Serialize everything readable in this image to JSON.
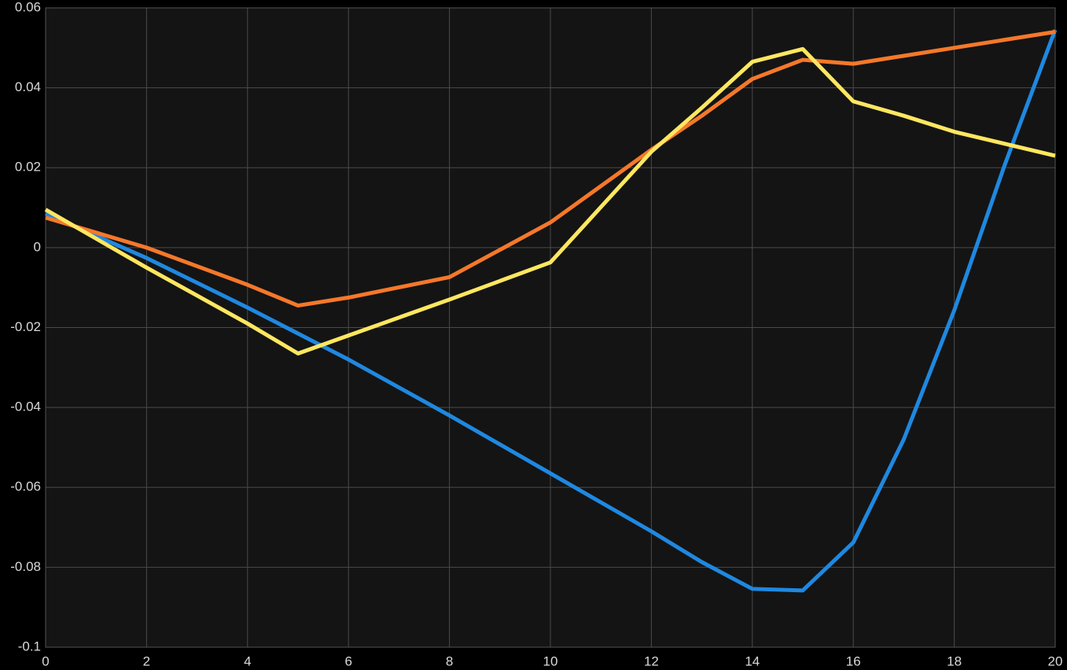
{
  "chart_data": {
    "type": "line",
    "x": [
      0,
      2,
      4,
      5,
      6,
      8,
      10,
      12,
      13,
      14,
      15,
      16,
      17,
      18,
      19,
      20
    ],
    "series": [
      {
        "color": "#1f88e0",
        "values": [
          0.0085,
          -0.0026,
          -0.015,
          -0.0215,
          -0.028,
          -0.042,
          -0.0565,
          -0.071,
          -0.0787,
          -0.0854,
          -0.0858,
          -0.0738,
          -0.048,
          -0.0157,
          0.0207,
          0.0545
        ]
      },
      {
        "color": "#f5782a",
        "values": [
          0.0075,
          0,
          -0.0093,
          -0.0145,
          -0.0125,
          -0.0074,
          0.0063,
          0.0245,
          0.033,
          0.0422,
          0.047,
          0.046,
          0.048,
          0.05,
          0.052,
          0.054
        ]
      },
      {
        "color": "#ffe760",
        "values": [
          0.0095,
          -0.005,
          -0.019,
          -0.0265,
          -0.022,
          -0.013,
          -0.0037,
          0.024,
          0.035,
          0.0465,
          0.0497,
          0.0366,
          0.033,
          0.029,
          0.026,
          0.023
        ]
      }
    ],
    "xlim": [
      0,
      20
    ],
    "xticks": [
      0,
      2,
      4,
      6,
      8,
      10,
      12,
      14,
      16,
      18,
      20
    ],
    "ylim": [
      -0.1,
      0.06
    ],
    "yticks": [
      -0.1,
      -0.08,
      -0.06,
      -0.04,
      -0.02,
      0,
      0.02,
      0.04,
      0.06
    ],
    "grid": true
  }
}
